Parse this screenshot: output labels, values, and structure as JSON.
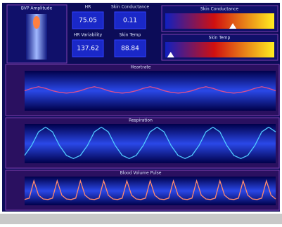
{
  "panels": {
    "thermometer": {
      "title": "BVP Amplitude"
    },
    "tiles": [
      {
        "label": "HR",
        "value": "75.05"
      },
      {
        "label": "Skin Conductance",
        "value": "0.11"
      },
      {
        "label": "HR Variability",
        "value": "137.62"
      },
      {
        "label": "Skin Temp",
        "value": "88.84"
      }
    ],
    "gauges": [
      {
        "title": "Skin Conductance",
        "marker": 0.62,
        "range": [
          0,
          1
        ]
      },
      {
        "title": "Skin Temp",
        "marker": 0.05,
        "range": [
          0,
          1
        ]
      }
    ]
  },
  "charts": [
    {
      "type": "line",
      "title": "Heartrate",
      "color": "#e0508a",
      "ylim": [
        0,
        100
      ],
      "values": [
        50,
        56,
        60,
        56,
        50,
        46,
        44,
        46,
        50,
        56,
        60,
        56,
        50,
        46,
        44,
        46,
        50,
        56,
        60,
        56,
        50,
        46,
        44,
        46,
        50,
        56,
        60,
        56,
        50,
        46,
        44,
        46,
        50,
        56,
        60,
        56,
        50
      ]
    },
    {
      "type": "line",
      "title": "Respiration",
      "color": "#50c8ff",
      "ylim": [
        0,
        100
      ],
      "values": [
        20,
        45,
        80,
        92,
        80,
        45,
        20,
        12,
        20,
        45,
        80,
        92,
        80,
        45,
        20,
        12,
        20,
        45,
        80,
        92,
        80,
        45,
        20,
        12,
        20,
        45,
        80,
        92,
        80,
        45,
        20,
        12,
        20,
        45,
        80,
        92,
        80
      ]
    },
    {
      "type": "line",
      "title": "Blood Volume Pulse",
      "color": "#ff8a70",
      "ylim": [
        0,
        100
      ],
      "values": [
        20,
        25,
        85,
        35,
        22,
        20,
        25,
        85,
        35,
        22,
        20,
        25,
        85,
        35,
        22,
        20,
        25,
        85,
        35,
        22,
        20,
        25,
        85,
        35,
        22,
        20,
        25,
        85,
        35,
        22,
        20,
        25,
        85,
        35,
        22,
        20,
        25,
        85,
        35,
        22,
        20,
        25,
        85,
        35,
        22,
        20,
        25,
        85,
        35,
        22,
        20,
        25,
        85,
        35,
        22
      ]
    }
  ]
}
